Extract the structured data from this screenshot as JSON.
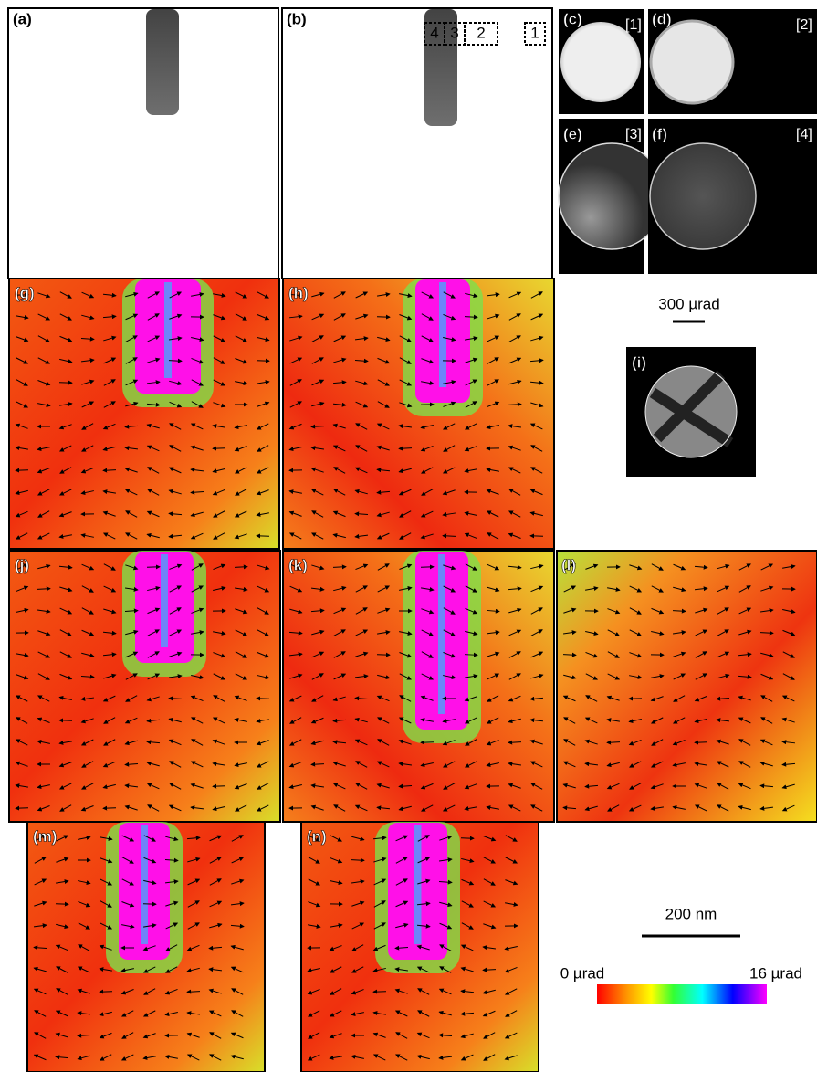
{
  "panels": [
    {
      "label": "(a)"
    },
    {
      "label": "(b)"
    },
    {
      "label": "(c)"
    },
    {
      "label": "(d)"
    },
    {
      "label": "(e)"
    },
    {
      "label": "(f)"
    },
    {
      "label": "(g)"
    },
    {
      "label": "(h)"
    },
    {
      "label": "(i)"
    },
    {
      "label": "(j)"
    },
    {
      "label": "(k)"
    },
    {
      "label": "(l)"
    },
    {
      "label": "(m)"
    },
    {
      "label": "(n)"
    }
  ],
  "detector_labels": [
    "[1]",
    "[2]",
    "[3]",
    "[4]"
  ],
  "roi_labels": [
    "4",
    "3",
    "2",
    "1"
  ],
  "angle_scale": "300 µrad",
  "length_scale": "200 nm",
  "colorbar": {
    "min_label": "0 µrad",
    "max_label": "16 µrad"
  }
}
